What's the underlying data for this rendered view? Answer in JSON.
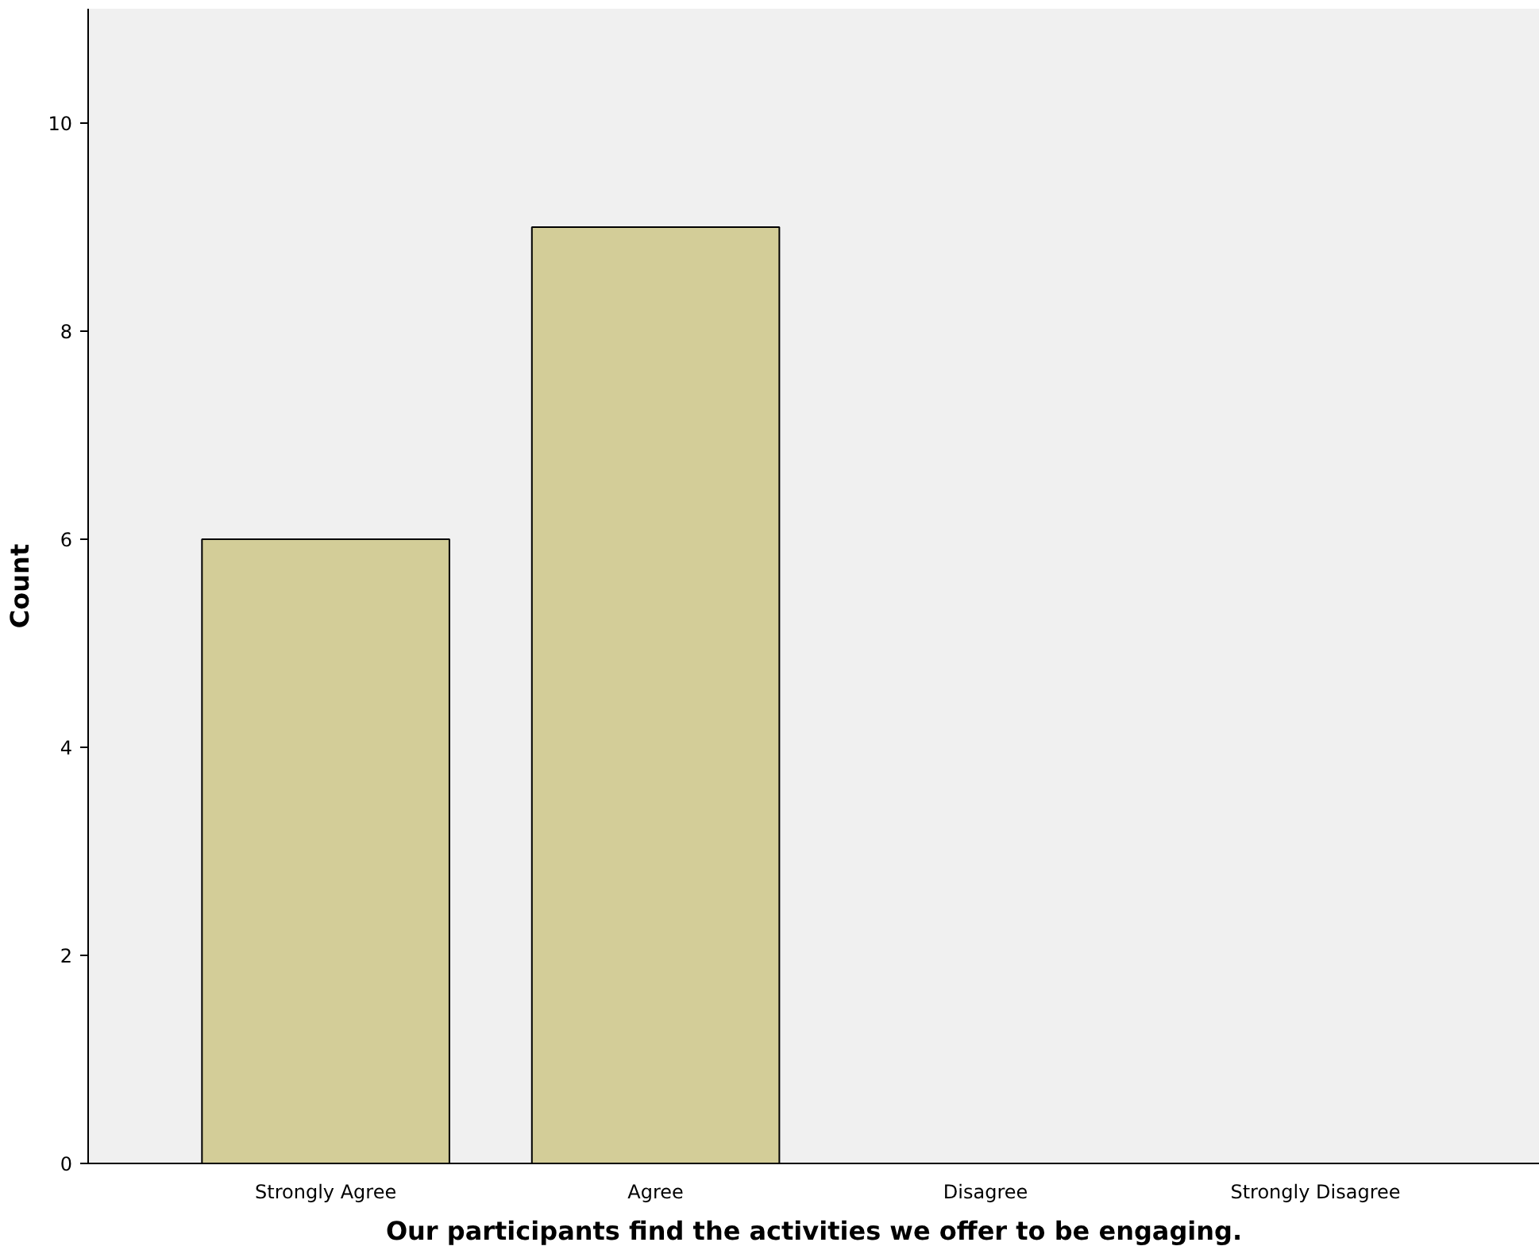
{
  "chart_data": {
    "type": "bar",
    "xlabel": "Our participants find the activities we offer to be engaging.",
    "ylabel": "Count",
    "categories": [
      "Strongly Agree",
      "Agree",
      "Disagree",
      "Strongly Disagree"
    ],
    "values": [
      6,
      9,
      0,
      0
    ],
    "color": "#d3cd98",
    "ylim": [
      0,
      11.1
    ],
    "yticks": [
      0,
      2,
      4,
      6,
      8,
      10
    ],
    "grid": false
  }
}
